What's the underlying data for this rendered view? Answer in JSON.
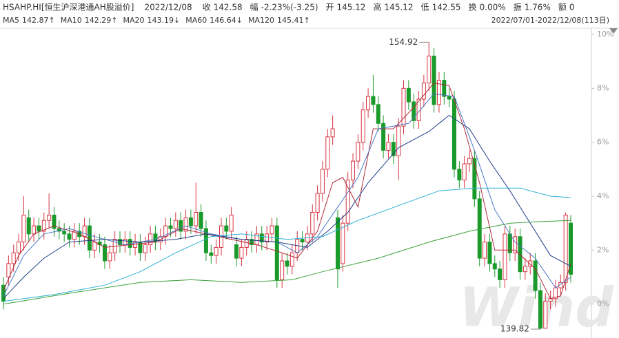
{
  "chart_data": {
    "type": "candlestick",
    "header": [
      {
        "label": "HSAHP.HI[恒生沪深港通AH股溢价]",
        "color": "#333333"
      },
      {
        "label": "2022/12/08",
        "color": "#333333"
      },
      {
        "label": "收",
        "value": "142.58",
        "color": "#1a9a2a"
      },
      {
        "label": "幅",
        "value": "-2.23%(-3.25)",
        "color": "#1a9a2a"
      },
      {
        "label": "开",
        "value": "145.12",
        "color": "#d9333f"
      },
      {
        "label": "高",
        "value": "145.12",
        "color": "#d9333f"
      },
      {
        "label": "低",
        "value": "142.55",
        "color": "#1a9a2a"
      },
      {
        "label": "换",
        "value": "0.00%",
        "color": "#333333"
      },
      {
        "label": "振",
        "value": "1.76%",
        "color": "#333333"
      },
      {
        "label": "额",
        "value": "0",
        "color": "#333333"
      }
    ],
    "date_range": "2022/07/01-2022/12/08(113日)",
    "high_label": "154.92",
    "low_label": "139.82",
    "watermark": "Wind",
    "up_color": "#d9333f",
    "down_color": "#1a9a2a",
    "ylim": [
      -1.26,
      10.23
    ],
    "yticks": [
      {
        "value": 10,
        "label": "10%"
      },
      {
        "value": 8,
        "label": "8%"
      },
      {
        "value": 6,
        "label": "6%"
      },
      {
        "value": 4,
        "label": "4%"
      },
      {
        "value": 2,
        "label": "2%"
      },
      {
        "value": 0,
        "label": "0%"
      }
    ],
    "candles": {
      "open": [
        0.7,
        1.0,
        1.5,
        1.9,
        2.3,
        3.2,
        2.6,
        2.9,
        2.7,
        3.1,
        3.3,
        2.8,
        2.7,
        2.6,
        2.4,
        2.7,
        2.5,
        2.9,
        2.0,
        2.3,
        2.2,
        1.6,
        1.9,
        2.4,
        2.2,
        2.4,
        2.1,
        2.3,
        1.9,
        2.2,
        2.6,
        2.3,
        2.5,
        2.9,
        2.8,
        3.1,
        2.7,
        3.2,
        2.9,
        3.4,
        2.8,
        1.9,
        1.8,
        2.1,
        2.9,
        2.7,
        2.2,
        1.7,
        2.1,
        2.4,
        2.2,
        2.6,
        2.3,
        2.6,
        2.9,
        0.9,
        1.6,
        1.4,
        1.9,
        2.4,
        2.3,
        2.6,
        3.4,
        4.1,
        5.0,
        6.2,
        3.2,
        1.5,
        3.0,
        4.6,
        5.3,
        6.0,
        7.2,
        7.7,
        7.4,
        6.7,
        5.7,
        6.0,
        5.5,
        6.6,
        8.0,
        7.5,
        6.8,
        7.6,
        8.2,
        9.2,
        7.4,
        8.3,
        7.7,
        7.6,
        5.0,
        4.6,
        5.2,
        5.4,
        3.9,
        1.7,
        2.3,
        1.5,
        1.3,
        0.9,
        2.6,
        1.9,
        2.5,
        1.2,
        1.4,
        1.6,
        0.5,
        -0.9,
        0.1,
        0.2,
        0.6,
        0.8,
        3.0
      ],
      "close": [
        0.1,
        1.5,
        1.9,
        2.3,
        3.3,
        2.6,
        2.9,
        2.7,
        3.1,
        3.3,
        2.8,
        2.7,
        2.6,
        2.4,
        2.7,
        2.5,
        2.9,
        2.0,
        2.3,
        2.2,
        1.6,
        1.9,
        2.4,
        2.2,
        2.4,
        2.1,
        2.3,
        1.9,
        2.2,
        2.6,
        2.3,
        2.5,
        2.9,
        2.8,
        3.1,
        2.7,
        3.2,
        2.9,
        3.4,
        2.8,
        1.9,
        1.8,
        2.1,
        2.9,
        2.7,
        3.3,
        1.7,
        2.1,
        2.4,
        2.2,
        2.6,
        2.3,
        2.6,
        2.9,
        0.9,
        1.6,
        1.4,
        1.9,
        2.4,
        2.3,
        2.6,
        3.4,
        4.1,
        5.0,
        6.2,
        6.5,
        1.3,
        3.0,
        4.6,
        5.3,
        6.0,
        7.2,
        7.7,
        7.4,
        6.7,
        5.7,
        6.0,
        5.5,
        6.6,
        8.0,
        7.5,
        6.8,
        7.6,
        8.2,
        9.2,
        7.4,
        8.3,
        7.7,
        7.6,
        5.0,
        4.6,
        5.2,
        5.4,
        3.9,
        1.7,
        2.3,
        1.5,
        1.3,
        0.9,
        2.6,
        1.9,
        2.5,
        1.2,
        1.4,
        1.6,
        0.5,
        -0.9,
        0.1,
        0.2,
        0.6,
        0.8,
        3.3,
        1.1
      ],
      "high": [
        1.0,
        1.8,
        2.2,
        2.6,
        4.0,
        3.5,
        3.2,
        3.2,
        3.4,
        4.1,
        3.6,
        3.1,
        3.0,
        2.9,
        3.0,
        3.0,
        3.2,
        3.2,
        2.6,
        2.6,
        2.5,
        2.2,
        2.7,
        2.7,
        2.7,
        2.7,
        2.6,
        2.6,
        2.5,
        2.9,
        2.9,
        2.8,
        3.2,
        3.2,
        3.4,
        3.4,
        3.5,
        3.5,
        4.5,
        3.7,
        3.1,
        2.2,
        2.4,
        3.2,
        3.2,
        3.6,
        2.5,
        2.4,
        2.7,
        2.7,
        2.9,
        2.9,
        2.9,
        3.2,
        3.2,
        1.9,
        1.9,
        2.2,
        2.7,
        2.7,
        2.9,
        3.7,
        4.4,
        5.3,
        6.5,
        7.0,
        3.5,
        3.3,
        4.9,
        5.6,
        6.3,
        7.5,
        8.0,
        8.5,
        7.7,
        7.0,
        6.3,
        6.3,
        6.9,
        8.3,
        8.3,
        7.8,
        7.9,
        8.5,
        9.71,
        9.5,
        8.6,
        8.6,
        8.0,
        7.9,
        5.3,
        5.5,
        5.7,
        5.7,
        4.2,
        2.6,
        2.6,
        1.8,
        1.6,
        2.9,
        2.9,
        2.8,
        2.8,
        1.7,
        1.9,
        1.9,
        0.8,
        0.4,
        0.5,
        0.9,
        1.1,
        3.4,
        3.3
      ],
      "low": [
        -0.2,
        0.7,
        1.2,
        1.6,
        2.0,
        2.3,
        2.3,
        2.4,
        2.4,
        2.8,
        2.5,
        2.4,
        2.3,
        2.1,
        2.1,
        2.2,
        2.2,
        1.7,
        1.7,
        1.9,
        1.3,
        1.3,
        1.6,
        1.9,
        1.9,
        1.8,
        1.8,
        1.6,
        1.6,
        1.9,
        2.0,
        2.0,
        2.2,
        2.5,
        2.5,
        2.4,
        2.4,
        2.6,
        2.6,
        2.5,
        1.6,
        1.5,
        1.5,
        1.8,
        2.4,
        2.4,
        1.4,
        1.4,
        1.8,
        1.9,
        1.9,
        2.0,
        2.0,
        2.3,
        0.6,
        0.6,
        1.1,
        1.1,
        1.6,
        2.0,
        2.0,
        2.3,
        3.1,
        3.8,
        4.7,
        5.9,
        0.6,
        1.2,
        2.7,
        4.3,
        5.0,
        5.7,
        6.9,
        7.1,
        6.4,
        5.4,
        5.4,
        5.2,
        4.6,
        6.3,
        7.2,
        6.5,
        6.5,
        7.3,
        7.9,
        7.1,
        7.1,
        7.4,
        7.3,
        4.7,
        4.3,
        4.3,
        4.9,
        3.6,
        1.4,
        1.4,
        1.2,
        1.0,
        0.6,
        0.6,
        1.6,
        1.6,
        0.9,
        0.9,
        1.1,
        0.2,
        -0.93,
        -0.9,
        -0.2,
        -0.1,
        0.3,
        0.5,
        0.8
      ]
    },
    "series": [
      {
        "name": "MA5",
        "legend_value": "142.87↑",
        "color": "#b0283a",
        "x": [
          0,
          3,
          6,
          10,
          15,
          20,
          25,
          30,
          35,
          40,
          45,
          50,
          55,
          58,
          62,
          65,
          67,
          70,
          73,
          77,
          81,
          85,
          88,
          91,
          94,
          97,
          101,
          105,
          108,
          110,
          112
        ],
        "values": [
          0.5,
          1.8,
          2.6,
          2.9,
          2.6,
          2.1,
          2.2,
          2.3,
          2.8,
          2.6,
          2.4,
          2.2,
          1.9,
          1.7,
          2.7,
          4.5,
          4.7,
          3.6,
          6.5,
          6.5,
          7.3,
          8.2,
          8.1,
          6.5,
          4.5,
          2.0,
          2.0,
          1.3,
          0.2,
          0.3,
          1.5
        ]
      },
      {
        "name": "MA10",
        "legend_value": "142.29↑",
        "color": "#4a78c8",
        "x": [
          0,
          4,
          8,
          13,
          18,
          24,
          30,
          36,
          41,
          47,
          54,
          58,
          62,
          66,
          70,
          74,
          80,
          85,
          89,
          93,
          97,
          101,
          105,
          109,
          112
        ],
        "values": [
          0.3,
          1.8,
          2.6,
          2.8,
          2.5,
          2.2,
          2.4,
          2.9,
          2.6,
          2.4,
          2.3,
          1.9,
          2.5,
          3.6,
          4.7,
          6.5,
          6.7,
          7.8,
          7.7,
          5.7,
          3.5,
          2.3,
          1.7,
          0.6,
          1.0
        ]
      },
      {
        "name": "MA20",
        "legend_value": "143.19↓",
        "color": "#1f3c88",
        "x": [
          0,
          4,
          8,
          13,
          20,
          27,
          34,
          40,
          47,
          54,
          60,
          64,
          68,
          72,
          78,
          84,
          88,
          92,
          96,
          100,
          104,
          108,
          112
        ],
        "values": [
          0.2,
          1.0,
          1.7,
          2.3,
          2.4,
          2.3,
          2.4,
          2.6,
          2.4,
          2.3,
          2.1,
          2.7,
          3.4,
          4.5,
          5.8,
          6.4,
          7.0,
          6.5,
          5.3,
          4.2,
          3.0,
          1.8,
          1.4
        ]
      },
      {
        "name": "MA60",
        "legend_value": "146.64↓",
        "color": "#2bb0d6",
        "x": [
          0,
          10,
          20,
          27,
          34,
          41,
          47,
          56,
          63,
          70,
          78,
          86,
          93,
          102,
          108,
          112
        ],
        "values": [
          0.1,
          0.35,
          0.7,
          1.2,
          1.9,
          2.5,
          2.6,
          2.4,
          2.5,
          3.1,
          3.65,
          4.2,
          4.3,
          4.3,
          4.0,
          3.95
        ]
      },
      {
        "name": "MA120",
        "legend_value": "145.41↑",
        "color": "#3aa03a",
        "x": [
          0,
          13,
          27,
          37,
          47,
          57,
          63,
          74,
          84,
          92,
          100,
          105,
          112
        ],
        "values": [
          0.0,
          0.4,
          0.8,
          0.9,
          0.8,
          0.9,
          1.2,
          1.7,
          2.3,
          2.7,
          3.0,
          3.05,
          3.1
        ]
      }
    ]
  }
}
